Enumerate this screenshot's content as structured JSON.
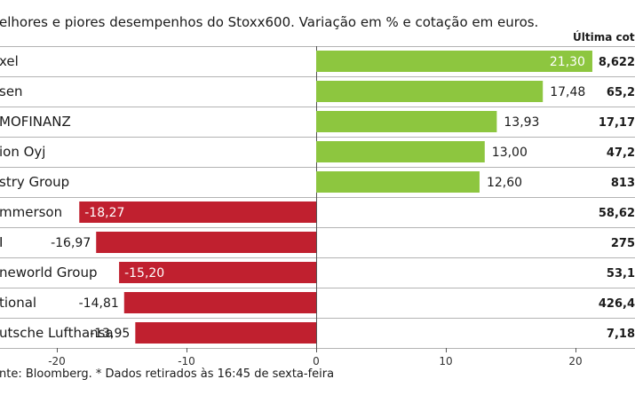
{
  "chart_data": {
    "type": "bar",
    "orientation": "horizontal",
    "subtitle": "elhores e piores desempenhos do Stoxx600. Variação em % e cotação em euros.",
    "price_column_header": "Última cotação",
    "categories": [
      "xel",
      "sen",
      "MOFINANZ",
      "ion Oyj",
      "stry Group",
      "mmerson",
      "I",
      "neworld Group",
      "tional",
      "utsche Lufthansa"
    ],
    "values": [
      21.3,
      17.48,
      13.93,
      13.0,
      12.6,
      -18.27,
      -16.97,
      -15.2,
      -14.81,
      -13.95
    ],
    "value_labels": [
      "21,30",
      "17,48",
      "13,93",
      "13,00",
      "12,60",
      "-18,27",
      "-16,97",
      "-15,20",
      "-14,81",
      "-13,95"
    ],
    "prices": [
      "8,622",
      "65,2",
      "17,17",
      "47,2",
      "813",
      "58,62",
      "275",
      "53,1",
      "426,4",
      "7,18"
    ],
    "xlim": [
      -24.2,
      24.3
    ],
    "xticks": [
      -20,
      -10,
      0,
      10,
      20
    ],
    "xtick_labels": [
      "-20",
      "-10",
      "0",
      "10",
      "20"
    ],
    "colors": {
      "positive": "#8dc63f",
      "negative": "#c0202f",
      "grid": "#b3b3b3",
      "axis": "#555555"
    },
    "source": "nte: Bloomberg.  * Dados retirados às 16:45 de sexta-feira"
  }
}
